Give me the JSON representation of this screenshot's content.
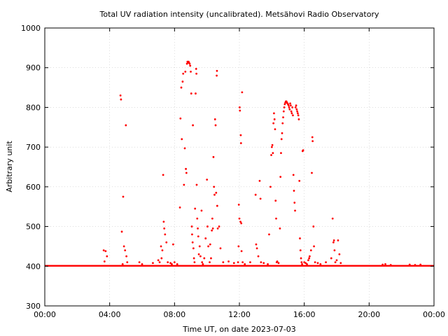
{
  "chart_data": {
    "type": "scatter",
    "title": "Total UV radiation intensity (uncalibrated). Metsähovi Radio Observatory",
    "xlabel": "Time UT, on date 2023-07-03",
    "ylabel": "Arbitrary unit",
    "xlim": [
      "00:00",
      "24:00"
    ],
    "ylim": [
      300,
      1000
    ],
    "x_ticks": [
      "00:00",
      "04:00",
      "08:00",
      "12:00",
      "16:00",
      "20:00",
      "00:00"
    ],
    "y_ticks": [
      "300",
      "400",
      "500",
      "600",
      "700",
      "800",
      "900",
      "1000"
    ],
    "grid": true,
    "point_color": "#ff0000",
    "series": [
      {
        "baseline_value": 401,
        "baseline_range": [
          "00:00",
          "24:00"
        ],
        "points": [
          [
            "03:38",
            440
          ],
          [
            "03:45",
            438
          ],
          [
            "03:50",
            425
          ],
          [
            "03:41",
            412
          ],
          [
            "04:40",
            830
          ],
          [
            "04:42",
            820
          ],
          [
            "04:45",
            487
          ],
          [
            "04:50",
            575
          ],
          [
            "04:53",
            450
          ],
          [
            "04:57",
            440
          ],
          [
            "05:00",
            755
          ],
          [
            "05:02",
            425
          ],
          [
            "04:48",
            405
          ],
          [
            "05:05",
            410
          ],
          [
            "05:50",
            410
          ],
          [
            "06:00",
            405
          ],
          [
            "06:40",
            408
          ],
          [
            "07:00",
            415
          ],
          [
            "07:05",
            410
          ],
          [
            "07:10",
            450
          ],
          [
            "07:12",
            420
          ],
          [
            "07:15",
            440
          ],
          [
            "07:18",
            630
          ],
          [
            "07:20",
            512
          ],
          [
            "07:22",
            495
          ],
          [
            "07:25",
            480
          ],
          [
            "07:30",
            460
          ],
          [
            "07:35",
            410
          ],
          [
            "07:45",
            408
          ],
          [
            "07:50",
            405
          ],
          [
            "07:55",
            455
          ],
          [
            "08:00",
            410
          ],
          [
            "08:10",
            405
          ],
          [
            "08:20",
            548
          ],
          [
            "08:22",
            772
          ],
          [
            "08:25",
            850
          ],
          [
            "08:27",
            720
          ],
          [
            "08:30",
            865
          ],
          [
            "08:32",
            885
          ],
          [
            "08:35",
            605
          ],
          [
            "08:38",
            697
          ],
          [
            "08:40",
            890
          ],
          [
            "08:42",
            645
          ],
          [
            "08:44",
            635
          ],
          [
            "08:46",
            910
          ],
          [
            "08:48",
            915
          ],
          [
            "08:50",
            913
          ],
          [
            "08:52",
            915
          ],
          [
            "08:54",
            912
          ],
          [
            "08:56",
            910
          ],
          [
            "08:58",
            905
          ],
          [
            "09:00",
            890
          ],
          [
            "09:02",
            835
          ],
          [
            "09:04",
            500
          ],
          [
            "09:05",
            480
          ],
          [
            "09:07",
            460
          ],
          [
            "09:08",
            755
          ],
          [
            "09:10",
            445
          ],
          [
            "09:12",
            420
          ],
          [
            "09:14",
            410
          ],
          [
            "09:16",
            545
          ],
          [
            "09:18",
            835
          ],
          [
            "09:20",
            897
          ],
          [
            "09:21",
            885
          ],
          [
            "09:22",
            605
          ],
          [
            "09:24",
            520
          ],
          [
            "09:26",
            495
          ],
          [
            "09:28",
            475
          ],
          [
            "09:30",
            430
          ],
          [
            "09:33",
            450
          ],
          [
            "09:36",
            425
          ],
          [
            "09:40",
            540
          ],
          [
            "09:42",
            410
          ],
          [
            "09:45",
            405
          ],
          [
            "09:50",
            420
          ],
          [
            "09:55",
            470
          ],
          [
            "10:00",
            618
          ],
          [
            "10:02",
            500
          ],
          [
            "10:05",
            450
          ],
          [
            "10:10",
            410
          ],
          [
            "10:12",
            455
          ],
          [
            "10:15",
            420
          ],
          [
            "10:18",
            490
          ],
          [
            "10:20",
            520
          ],
          [
            "10:22",
            495
          ],
          [
            "10:24",
            675
          ],
          [
            "10:26",
            600
          ],
          [
            "10:28",
            580
          ],
          [
            "10:30",
            770
          ],
          [
            "10:32",
            755
          ],
          [
            "10:34",
            585
          ],
          [
            "10:36",
            880
          ],
          [
            "10:37",
            892
          ],
          [
            "10:38",
            552
          ],
          [
            "10:40",
            495
          ],
          [
            "10:45",
            500
          ],
          [
            "10:50",
            445
          ],
          [
            "11:00",
            410
          ],
          [
            "11:20",
            412
          ],
          [
            "11:40",
            408
          ],
          [
            "11:55",
            410
          ],
          [
            "11:57",
            450
          ],
          [
            "11:58",
            555
          ],
          [
            "12:00",
            520
          ],
          [
            "12:01",
            800
          ],
          [
            "12:02",
            792
          ],
          [
            "12:04",
            512
          ],
          [
            "12:05",
            730
          ],
          [
            "12:06",
            710
          ],
          [
            "12:07",
            508
          ],
          [
            "12:08",
            438
          ],
          [
            "12:10",
            838
          ],
          [
            "12:12",
            410
          ],
          [
            "12:20",
            405
          ],
          [
            "12:40",
            410
          ],
          [
            "13:00",
            580
          ],
          [
            "13:02",
            455
          ],
          [
            "13:05",
            445
          ],
          [
            "13:10",
            425
          ],
          [
            "13:15",
            615
          ],
          [
            "13:18",
            570
          ],
          [
            "13:20",
            410
          ],
          [
            "13:30",
            408
          ],
          [
            "13:45",
            405
          ],
          [
            "13:50",
            480
          ],
          [
            "13:55",
            600
          ],
          [
            "13:58",
            680
          ],
          [
            "14:00",
            700
          ],
          [
            "14:02",
            705
          ],
          [
            "14:04",
            685
          ],
          [
            "14:06",
            760
          ],
          [
            "14:08",
            785
          ],
          [
            "14:10",
            770
          ],
          [
            "14:12",
            745
          ],
          [
            "14:14",
            565
          ],
          [
            "14:16",
            520
          ],
          [
            "14:18",
            410
          ],
          [
            "14:20",
            412
          ],
          [
            "14:25",
            408
          ],
          [
            "14:30",
            495
          ],
          [
            "14:32",
            625
          ],
          [
            "14:34",
            685
          ],
          [
            "14:36",
            720
          ],
          [
            "14:38",
            735
          ],
          [
            "14:40",
            760
          ],
          [
            "14:42",
            775
          ],
          [
            "14:44",
            790
          ],
          [
            "14:46",
            800
          ],
          [
            "14:48",
            808
          ],
          [
            "14:50",
            812
          ],
          [
            "14:52",
            815
          ],
          [
            "14:54",
            815
          ],
          [
            "14:56",
            812
          ],
          [
            "14:58",
            810
          ],
          [
            "15:00",
            808
          ],
          [
            "15:02",
            805
          ],
          [
            "15:04",
            800
          ],
          [
            "15:06",
            795
          ],
          [
            "15:08",
            810
          ],
          [
            "15:10",
            805
          ],
          [
            "15:12",
            790
          ],
          [
            "15:14",
            785
          ],
          [
            "15:16",
            800
          ],
          [
            "15:18",
            780
          ],
          [
            "15:20",
            630
          ],
          [
            "15:22",
            590
          ],
          [
            "15:24",
            560
          ],
          [
            "15:26",
            540
          ],
          [
            "15:28",
            800
          ],
          [
            "15:30",
            805
          ],
          [
            "15:32",
            795
          ],
          [
            "15:34",
            790
          ],
          [
            "15:36",
            785
          ],
          [
            "15:38",
            780
          ],
          [
            "15:40",
            770
          ],
          [
            "15:42",
            615
          ],
          [
            "15:44",
            470
          ],
          [
            "15:46",
            440
          ],
          [
            "15:48",
            420
          ],
          [
            "15:50",
            410
          ],
          [
            "15:52",
            405
          ],
          [
            "15:54",
            690
          ],
          [
            "15:56",
            692
          ],
          [
            "16:00",
            410
          ],
          [
            "16:05",
            408
          ],
          [
            "16:10",
            405
          ],
          [
            "16:15",
            415
          ],
          [
            "16:18",
            420
          ],
          [
            "16:20",
            425
          ],
          [
            "16:25",
            440
          ],
          [
            "16:28",
            635
          ],
          [
            "16:30",
            725
          ],
          [
            "16:31",
            715
          ],
          [
            "16:34",
            500
          ],
          [
            "16:36",
            450
          ],
          [
            "16:40",
            410
          ],
          [
            "16:50",
            408
          ],
          [
            "17:00",
            405
          ],
          [
            "17:20",
            410
          ],
          [
            "17:40",
            420
          ],
          [
            "17:45",
            520
          ],
          [
            "17:48",
            460
          ],
          [
            "17:50",
            465
          ],
          [
            "17:52",
            440
          ],
          [
            "17:55",
            410
          ],
          [
            "18:00",
            415
          ],
          [
            "18:05",
            465
          ],
          [
            "18:10",
            430
          ],
          [
            "18:15",
            408
          ],
          [
            "20:50",
            404
          ],
          [
            "21:00",
            405
          ],
          [
            "21:20",
            403
          ],
          [
            "22:30",
            404
          ],
          [
            "22:50",
            403
          ],
          [
            "23:10",
            404
          ]
        ]
      }
    ]
  }
}
